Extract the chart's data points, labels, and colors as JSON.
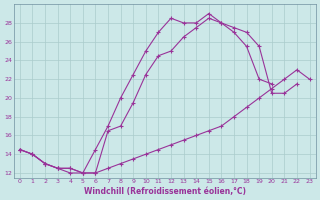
{
  "xlabel": "Windchill (Refroidissement éolien,°C)",
  "bg_color": "#cce8e8",
  "grid_color": "#aacccc",
  "line_color": "#993399",
  "xlim": [
    -0.5,
    23.5
  ],
  "ylim": [
    11.5,
    30
  ],
  "xticks": [
    0,
    1,
    2,
    3,
    4,
    5,
    6,
    7,
    8,
    9,
    10,
    11,
    12,
    13,
    14,
    15,
    16,
    17,
    18,
    19,
    20,
    21,
    22,
    23
  ],
  "yticks": [
    12,
    14,
    16,
    18,
    20,
    22,
    24,
    26,
    28
  ],
  "line1_x": [
    0,
    1,
    2,
    3,
    4,
    5,
    6,
    7,
    8,
    9,
    10,
    11,
    12,
    13,
    14,
    15,
    16,
    17,
    18,
    19,
    20,
    21,
    22
  ],
  "line1_y": [
    14.5,
    14.0,
    13.0,
    12.5,
    12.0,
    12.0,
    14.5,
    17.0,
    20.0,
    22.5,
    25.0,
    27.0,
    28.5,
    28.0,
    28.0,
    29.0,
    28.0,
    27.5,
    27.0,
    25.5,
    20.5,
    20.5,
    21.5
  ],
  "line2_x": [
    0,
    1,
    2,
    3,
    4,
    5,
    6,
    7,
    8,
    9,
    10,
    11,
    12,
    13,
    14,
    15,
    16,
    17,
    18,
    19,
    20
  ],
  "line2_y": [
    14.5,
    14.0,
    13.0,
    12.5,
    12.5,
    12.0,
    12.0,
    16.5,
    17.0,
    19.5,
    22.5,
    24.5,
    25.0,
    26.5,
    27.5,
    28.5,
    28.0,
    27.0,
    25.5,
    22.0,
    21.5
  ],
  "line3_x": [
    0,
    1,
    2,
    3,
    4,
    5,
    6,
    7,
    8,
    9,
    10,
    11,
    12,
    13,
    14,
    15,
    16,
    17,
    18,
    19,
    20,
    21,
    22,
    23
  ],
  "line3_y": [
    14.5,
    14.0,
    13.0,
    12.5,
    12.5,
    12.0,
    12.0,
    12.5,
    13.0,
    13.5,
    14.0,
    14.5,
    15.0,
    15.5,
    16.0,
    16.5,
    17.0,
    18.0,
    19.0,
    20.0,
    21.0,
    22.0,
    23.0,
    22.0
  ]
}
